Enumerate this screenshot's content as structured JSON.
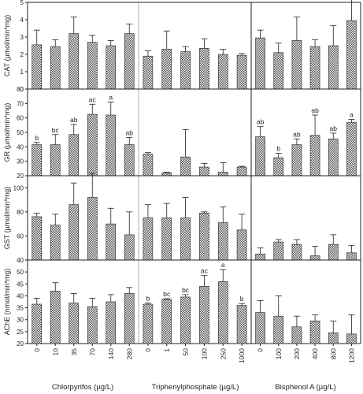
{
  "colors": {
    "bar_fill": "#8a8a8a",
    "bar_stroke": "#222222",
    "axis": "#222222"
  },
  "chart_data": {
    "type": "bar",
    "layout": "grid",
    "x_groups": [
      {
        "name": "Chlorpyrifos (µg/L)",
        "categories": [
          "0",
          "10",
          "35",
          "70",
          "140",
          "280"
        ]
      },
      {
        "name": "Triphenylphosphate (µg/L)",
        "categories": [
          "0",
          "1",
          "50",
          "100",
          "250",
          "1000"
        ]
      },
      {
        "name": "Bisphenol A (µg/L)",
        "categories": [
          "0",
          "100",
          "200",
          "400",
          "800",
          "1200"
        ]
      }
    ],
    "panels": [
      {
        "ylabel": "CAT (µmol/min*mg)",
        "ylim": [
          0,
          5
        ],
        "yticks": [
          "0",
          "1",
          "2",
          "3",
          "4",
          "5"
        ],
        "values": [
          [
            2.55,
            2.45,
            3.2,
            2.7,
            2.5,
            3.2
          ],
          [
            1.9,
            2.3,
            2.15,
            2.35,
            2.0,
            1.95
          ],
          [
            2.95,
            2.1,
            2.8,
            2.45,
            2.5,
            3.95
          ]
        ],
        "errors": [
          [
            0.85,
            0.4,
            0.95,
            0.4,
            0.3,
            0.55
          ],
          [
            0.3,
            1.05,
            0.3,
            0.55,
            0.3,
            0.1
          ],
          [
            0.45,
            0.55,
            1.35,
            0.4,
            1.15,
            1.35
          ]
        ],
        "letters": [
          [
            "",
            "",
            "",
            "",
            "",
            ""
          ],
          [
            "",
            "",
            "",
            "",
            "",
            ""
          ],
          [
            "",
            "",
            "",
            "",
            "",
            ""
          ]
        ]
      },
      {
        "ylabel": "GR (µmol/min*mg)",
        "ylim": [
          20,
          80
        ],
        "yticks": [
          "20",
          "30",
          "40",
          "50",
          "60",
          "70",
          "80"
        ],
        "values": [
          [
            41.5,
            41.5,
            48.5,
            62.5,
            62,
            41.5
          ],
          [
            35,
            22,
            33,
            26,
            22.5,
            26
          ],
          [
            47,
            32.5,
            41.5,
            48,
            45.5,
            57
          ]
        ],
        "errors": [
          [
            1.5,
            7,
            7,
            7,
            9,
            5
          ],
          [
            1,
            0.5,
            19,
            2.5,
            6.5,
            0.5
          ],
          [
            7,
            3,
            4,
            14,
            4,
            2
          ]
        ],
        "letters": [
          [
            "b",
            "bc",
            "ab",
            "ac",
            "a",
            "ab"
          ],
          [
            "",
            "",
            "",
            "",
            "",
            ""
          ],
          [
            "ab",
            "b",
            "ab",
            "ab",
            "ab",
            "a"
          ]
        ]
      },
      {
        "ylabel": "GST (µmol/min*mg)",
        "ylim": [
          40,
          110
        ],
        "yticks": [
          "40",
          "60",
          "80",
          "100"
        ],
        "values": [
          [
            76,
            69,
            86,
            92,
            70,
            61
          ],
          [
            75,
            75,
            75,
            79,
            71,
            65
          ],
          [
            45,
            55,
            53,
            43.5,
            53,
            46
          ]
        ],
        "errors": [
          [
            3,
            9,
            18,
            20,
            13,
            19
          ],
          [
            11,
            12,
            17,
            1,
            13,
            13
          ],
          [
            5,
            2,
            4,
            8,
            8,
            6
          ]
        ],
        "letters": [
          [
            "",
            "",
            "",
            "",
            "",
            ""
          ],
          [
            "",
            "",
            "",
            "",
            "",
            ""
          ],
          [
            "",
            "",
            "",
            "",
            "",
            ""
          ]
        ]
      },
      {
        "ylabel": "AChE (nmol/min*mg)",
        "ylim": [
          20,
          55
        ],
        "yticks": [
          "20",
          "25",
          "30",
          "35",
          "40",
          "45",
          "50"
        ],
        "values": [
          [
            36.5,
            42,
            37,
            35.5,
            37.5,
            41
          ],
          [
            36.5,
            38.5,
            39.5,
            44,
            46,
            36
          ],
          [
            33,
            31.5,
            27,
            29.5,
            24.5,
            24
          ]
        ],
        "errors": [
          [
            2.5,
            3.5,
            4,
            3.5,
            3,
            2.5
          ],
          [
            0.5,
            0.3,
            1,
            4.5,
            5,
            0.8
          ],
          [
            5,
            8.5,
            4.5,
            2.5,
            5,
            8
          ]
        ],
        "letters": [
          [
            "",
            "",
            "",
            "",
            "",
            ""
          ],
          [
            "b",
            "bc",
            "bc",
            "ac",
            "a",
            "b"
          ],
          [
            "",
            "",
            "",
            "",
            "",
            ""
          ]
        ]
      }
    ]
  }
}
